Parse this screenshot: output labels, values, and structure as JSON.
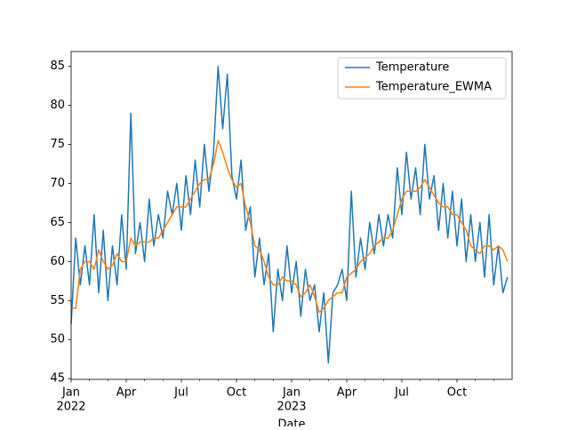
{
  "chart_data": {
    "type": "line",
    "x_label": "Date",
    "xlim": [
      0,
      24
    ],
    "xticks": [
      {
        "value": 0,
        "label": "Jan"
      },
      {
        "value": 3,
        "label": "Apr"
      },
      {
        "value": 6,
        "label": "Jul"
      },
      {
        "value": 9,
        "label": "Oct"
      },
      {
        "value": 12,
        "label": "Jan"
      },
      {
        "value": 15,
        "label": "Apr"
      },
      {
        "value": 18,
        "label": "Jul"
      },
      {
        "value": 21,
        "label": "Oct"
      }
    ],
    "xtick_years": [
      {
        "value": 0,
        "label": "2022"
      },
      {
        "value": 12,
        "label": "2023"
      }
    ],
    "xminorticks": [
      1,
      2,
      4,
      5,
      7,
      8,
      10,
      11,
      13,
      14,
      16,
      17,
      19,
      20,
      22,
      23
    ],
    "ylim": [
      44.9,
      86.9
    ],
    "yticks": [
      45,
      50,
      55,
      60,
      65,
      70,
      75,
      80,
      85
    ],
    "legend": "upper right",
    "x": [
      0,
      0.25,
      0.5,
      0.75,
      1,
      1.25,
      1.5,
      1.75,
      2,
      2.25,
      2.5,
      2.75,
      3,
      3.25,
      3.5,
      3.75,
      4,
      4.25,
      4.5,
      4.75,
      5,
      5.25,
      5.5,
      5.75,
      6,
      6.25,
      6.5,
      6.75,
      7,
      7.25,
      7.5,
      7.75,
      8,
      8.25,
      8.5,
      8.75,
      9,
      9.25,
      9.5,
      9.75,
      10,
      10.25,
      10.5,
      10.75,
      11,
      11.25,
      11.5,
      11.75,
      12,
      12.25,
      12.5,
      12.75,
      13,
      13.25,
      13.5,
      13.75,
      14,
      14.25,
      14.5,
      14.75,
      15,
      15.25,
      15.5,
      15.75,
      16,
      16.25,
      16.5,
      16.75,
      17,
      17.25,
      17.5,
      17.75,
      18,
      18.25,
      18.5,
      18.75,
      19,
      19.25,
      19.5,
      19.75,
      20,
      20.25,
      20.5,
      20.75,
      21,
      21.25,
      21.5,
      21.75,
      22,
      22.25,
      22.5,
      22.75,
      23,
      23.25,
      23.5,
      23.75
    ],
    "series": [
      {
        "name": "Temperature",
        "color": "#1f77b4",
        "values": [
          52,
          63,
          57,
          62,
          57,
          66,
          56,
          64,
          55,
          62,
          57,
          66,
          59,
          79,
          61,
          65,
          60,
          68,
          62,
          66,
          63,
          69,
          66,
          70,
          64,
          71,
          66,
          73,
          67,
          75,
          69,
          74,
          85,
          77,
          84,
          71,
          68,
          73,
          64,
          67,
          58,
          63,
          57,
          61,
          51,
          59,
          55,
          62,
          56,
          60,
          53,
          59,
          55,
          57,
          51,
          56,
          47,
          56,
          57,
          59,
          55,
          69,
          58,
          63,
          59,
          65,
          61,
          66,
          62,
          66,
          63,
          72,
          66,
          74,
          68,
          72,
          66,
          75,
          68,
          71,
          64,
          70,
          63,
          69,
          62,
          68,
          60,
          66,
          60,
          65,
          58,
          66,
          57,
          62,
          56,
          58
        ]
      },
      {
        "name": "Temperature_EWMA",
        "color": "#ff7f0e",
        "values": [
          54,
          54,
          59,
          60,
          60,
          59,
          61.5,
          60,
          59,
          59.5,
          61,
          60,
          60,
          63,
          62,
          62.5,
          62.5,
          62.5,
          63,
          63,
          64,
          65,
          66,
          67,
          67,
          67,
          68,
          69,
          70,
          70.5,
          70.5,
          72.5,
          75.5,
          74,
          72,
          70.5,
          69.5,
          70,
          67,
          65,
          62,
          61.5,
          60,
          58,
          57,
          57,
          58,
          57.5,
          57.5,
          57,
          55.5,
          56,
          57,
          55.5,
          53.5,
          54,
          55,
          55.5,
          56,
          56,
          58,
          58.5,
          59,
          60,
          60.5,
          61,
          62,
          62.5,
          63,
          63,
          64,
          66,
          68,
          69,
          69,
          69,
          69.5,
          70.5,
          69.5,
          68.5,
          67.5,
          67,
          67,
          66,
          66,
          65,
          64,
          62,
          61.5,
          61,
          62,
          62,
          61.5,
          62,
          61.5,
          60
        ]
      }
    ]
  }
}
